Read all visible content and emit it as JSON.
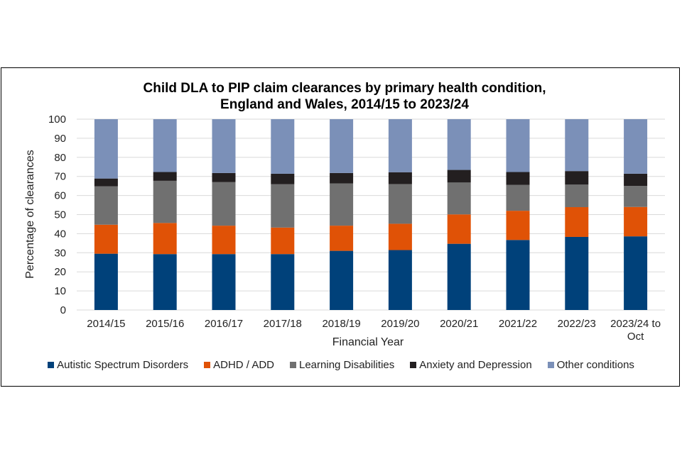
{
  "chart_data": {
    "type": "bar",
    "stacked": true,
    "title": [
      "Child DLA to PIP claim clearances by primary health condition,",
      "England and Wales, 2014/15 to 2023/24"
    ],
    "xlabel": "Financial Year",
    "ylabel": "Percentage of clearances",
    "ylim": [
      0,
      100
    ],
    "yticks": [
      0,
      10,
      20,
      30,
      40,
      50,
      60,
      70,
      80,
      90,
      100
    ],
    "grid": true,
    "legend_position": "bottom",
    "categories": [
      "2014/15",
      "2015/16",
      "2016/17",
      "2017/18",
      "2018/19",
      "2019/20",
      "2020/21",
      "2021/22",
      "2022/23",
      "2023/24 to Oct"
    ],
    "category_lines": [
      [
        "2014/15"
      ],
      [
        "2015/16"
      ],
      [
        "2016/17"
      ],
      [
        "2017/18"
      ],
      [
        "2018/19"
      ],
      [
        "2019/20"
      ],
      [
        "2020/21"
      ],
      [
        "2021/22"
      ],
      [
        "2022/23"
      ],
      [
        "2023/24 to",
        "Oct"
      ]
    ],
    "series": [
      {
        "name": "Autistic Spectrum Disorders",
        "color": "#00417A",
        "values": [
          29.5,
          29.3,
          29.3,
          29.3,
          31.0,
          31.4,
          34.7,
          36.7,
          38.3,
          38.6
        ]
      },
      {
        "name": "ADHD / ADD",
        "color": "#E05206",
        "values": [
          15.2,
          16.3,
          14.9,
          13.9,
          13.2,
          13.8,
          15.4,
          15.3,
          15.6,
          15.4
        ]
      },
      {
        "name": "Learning Disabilities",
        "color": "#707070",
        "values": [
          20.1,
          22.1,
          22.8,
          22.7,
          22.1,
          20.8,
          16.7,
          13.6,
          11.8,
          11.0
        ]
      },
      {
        "name": "Anxiety and Depression",
        "color": "#231F20",
        "values": [
          4.1,
          4.6,
          4.8,
          5.5,
          5.5,
          6.2,
          6.6,
          6.7,
          7.1,
          6.4
        ]
      },
      {
        "name": "Other conditions",
        "color": "#7B90B8",
        "values": [
          31.1,
          27.7,
          28.2,
          28.6,
          28.2,
          27.8,
          26.6,
          27.7,
          27.2,
          28.6
        ]
      }
    ]
  }
}
